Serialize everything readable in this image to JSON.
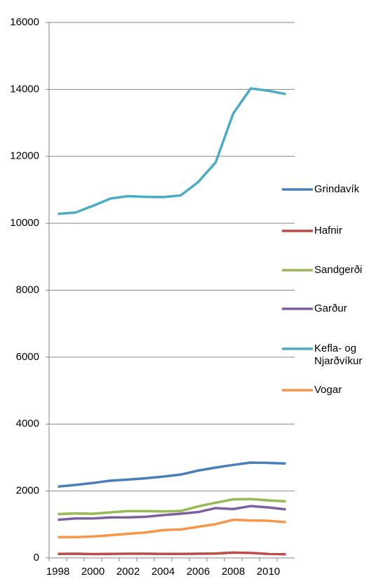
{
  "chart_data": {
    "type": "line",
    "categories": [
      "1998",
      null,
      "2000",
      null,
      "2002",
      null,
      "2004",
      null,
      "2006",
      null,
      "2008",
      null,
      "2010",
      null
    ],
    "series": [
      {
        "name": "Grindavík",
        "color": "#4a7ebb",
        "values": [
          2130,
          2180,
          2240,
          2310,
          2340,
          2380,
          2430,
          2490,
          2610,
          2700,
          2780,
          2850,
          2840,
          2820
        ]
      },
      {
        "name": "Hafnir",
        "color": "#be4b48",
        "values": [
          120,
          125,
          115,
          120,
          125,
          125,
          120,
          120,
          125,
          130,
          160,
          150,
          120,
          110
        ]
      },
      {
        "name": "Sandgerði",
        "color": "#98b954",
        "values": [
          1310,
          1330,
          1320,
          1360,
          1400,
          1400,
          1390,
          1400,
          1540,
          1650,
          1750,
          1760,
          1720,
          1690
        ]
      },
      {
        "name": "Garður",
        "color": "#7d60a0",
        "values": [
          1140,
          1180,
          1180,
          1210,
          1210,
          1230,
          1280,
          1320,
          1370,
          1490,
          1460,
          1550,
          1510,
          1450
        ]
      },
      {
        "name": "Kefla- og Njarðvíkur",
        "color": "#4bacc6",
        "values": [
          10280,
          10320,
          10520,
          10740,
          10810,
          10790,
          10780,
          10830,
          11230,
          11820,
          13280,
          14030,
          13960,
          13860
        ]
      },
      {
        "name": "Vogar",
        "color": "#f79646",
        "values": [
          620,
          620,
          640,
          680,
          720,
          760,
          830,
          850,
          930,
          1010,
          1140,
          1120,
          1110,
          1070
        ]
      }
    ],
    "ylim": [
      0,
      16000
    ],
    "yticks": [
      0,
      2000,
      4000,
      6000,
      8000,
      10000,
      12000,
      14000,
      16000
    ],
    "grid": true,
    "legend": "right"
  }
}
